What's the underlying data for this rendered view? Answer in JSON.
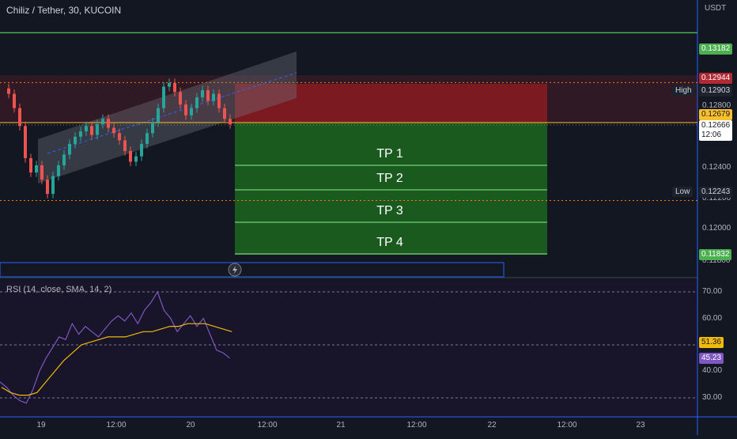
{
  "header": {
    "title": "Chiliz / Tether, 30, KUCOIN",
    "unit": "USDT"
  },
  "rsi": {
    "title": "RSI (14, close, SMA, 14, 2)"
  },
  "targets": [
    "TP 1",
    "TP 2",
    "TP 3",
    "TP 4"
  ],
  "price_axis": {
    "labels": [
      "0.12800",
      "0.12400",
      "0.12200",
      "0.12000",
      "0.11800"
    ],
    "tags": [
      {
        "value": "0.13182",
        "color": "#4caf50",
        "text_color": "#ffffff"
      },
      {
        "value": "0.12944",
        "color": "#b22833",
        "text_color": "#ffffff"
      },
      {
        "value": "0.12903",
        "color": "#1e222d",
        "text_color": "#d1d4dc",
        "side": "High"
      },
      {
        "value": "0.12679",
        "color": "#fbc02d",
        "text_color": "#131722"
      },
      {
        "value": "0.12666",
        "sub": "12:06",
        "color": "#ffffff",
        "text_color": "#131722"
      },
      {
        "value": "0.12243",
        "color": "#1e222d",
        "text_color": "#d1d4dc",
        "side": "Low"
      },
      {
        "value": "0.11832",
        "color": "#4caf50",
        "text_color": "#ffffff"
      }
    ]
  },
  "rsi_axis": {
    "labels": [
      "70.00",
      "60.00",
      "40.00",
      "30.00"
    ],
    "tags": [
      {
        "value": "51.36",
        "color": "#f0b90b",
        "text_color": "#131722"
      },
      {
        "value": "45.23",
        "color": "#7e57c2",
        "text_color": "#ffffff"
      }
    ]
  },
  "time_axis": {
    "labels": [
      "19",
      "12:00",
      "20",
      "12:00",
      "21",
      "12:00",
      "22",
      "12:00",
      "23"
    ]
  },
  "chart_data": {
    "type": "candlestick",
    "symbol": "Chiliz / Tether",
    "interval": "30",
    "exchange": "KUCOIN",
    "levels": {
      "high": 0.12903,
      "low": 0.12243,
      "last": 0.12666,
      "entry": 0.12679,
      "stop": 0.12944,
      "upper_target": 0.13182,
      "lower_target": 0.11832
    },
    "price": [
      0.1287,
      0.1284,
      0.1276,
      0.1266,
      0.1248,
      0.124,
      0.1244,
      0.1236,
      0.1228,
      0.1238,
      0.1244,
      0.125,
      0.1256,
      0.126,
      0.1263,
      0.1266,
      0.1261,
      0.1267,
      0.127,
      0.1265,
      0.1262,
      0.1258,
      0.1252,
      0.1246,
      0.1249,
      0.1256,
      0.1262,
      0.1268,
      0.1276,
      0.1288,
      0.129,
      0.1285,
      0.1278,
      0.1272,
      0.1276,
      0.1282,
      0.1286,
      0.128,
      0.1284,
      0.1276,
      0.127,
      0.1267
    ],
    "rsi": [
      36,
      34,
      31,
      29,
      28,
      33,
      40,
      45,
      49,
      53,
      52,
      58,
      54,
      57,
      55,
      53,
      56,
      59,
      61,
      59,
      62,
      58,
      63,
      66,
      70,
      63,
      60,
      55,
      58,
      61,
      57,
      60,
      54,
      48,
      47,
      45
    ],
    "rsi_sma": [
      34,
      32,
      31,
      31,
      32,
      36,
      40,
      44,
      47,
      50,
      51,
      52,
      53,
      53,
      53,
      54,
      55,
      55,
      56,
      57,
      57,
      58,
      58,
      58,
      57,
      56,
      55
    ]
  }
}
